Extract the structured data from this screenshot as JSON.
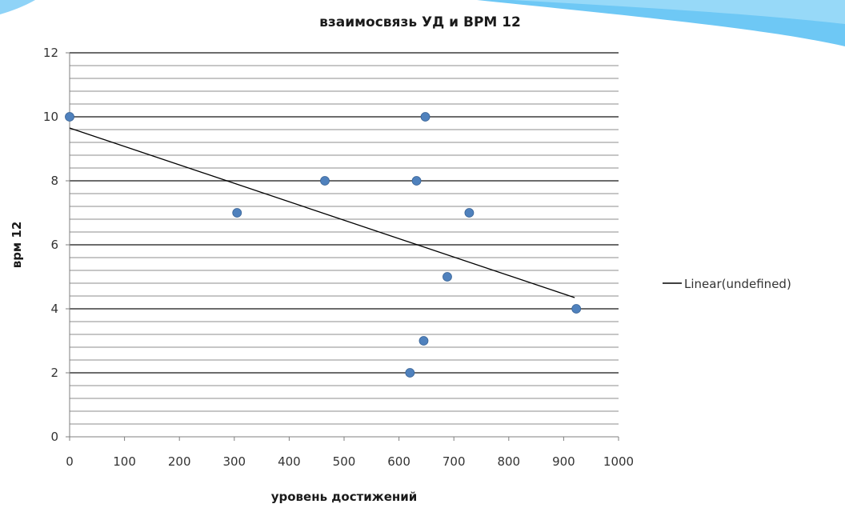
{
  "chart_data": {
    "type": "scatter",
    "title": "взаимосвязь УД и ВРМ 12",
    "xlabel": "уровень достижений",
    "ylabel": "врм 12",
    "xlim": [
      0,
      1000
    ],
    "ylim": [
      0,
      12
    ],
    "x_ticks": [
      "0",
      "100",
      "200",
      "300",
      "400",
      "500",
      "600",
      "700",
      "800",
      "900",
      "1000"
    ],
    "y_ticks": [
      "0",
      "2",
      "4",
      "6",
      "8",
      "10",
      "12"
    ],
    "points": [
      {
        "x": 0,
        "y": 10
      },
      {
        "x": 305,
        "y": 7
      },
      {
        "x": 465,
        "y": 8
      },
      {
        "x": 620,
        "y": 2
      },
      {
        "x": 632,
        "y": 8
      },
      {
        "x": 645,
        "y": 3
      },
      {
        "x": 648,
        "y": 10
      },
      {
        "x": 688,
        "y": 5
      },
      {
        "x": 728,
        "y": 7
      },
      {
        "x": 923,
        "y": 4
      }
    ],
    "trendline": {
      "name": "Linear(undefined)",
      "x": [
        0,
        920
      ],
      "y": [
        9.65,
        4.35
      ]
    },
    "grid": true,
    "legend": "right",
    "colors": {
      "marker": "#4f81bd",
      "trendline": "#000000",
      "grid": "#8c8c8c",
      "banner": "#6ec8f5"
    }
  }
}
